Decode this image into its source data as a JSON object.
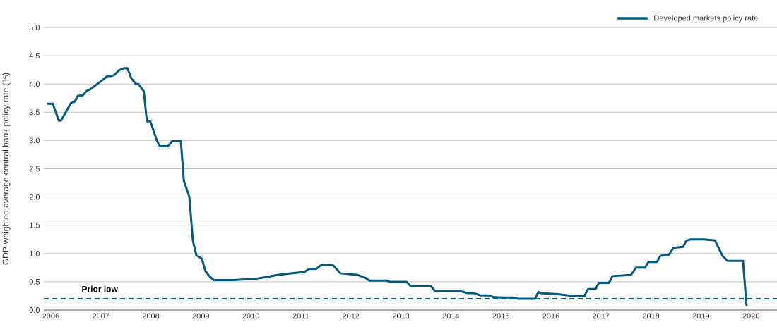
{
  "chart_data": {
    "type": "line",
    "ylabel": "GDP-weighted average central bank policy rate (%)",
    "x": [
      2005.94,
      2006.04,
      2006.16,
      2006.21,
      2006.4,
      2006.48,
      2006.54,
      2006.64,
      2006.72,
      2006.78,
      2006.96,
      2007.13,
      2007.2,
      2007.27,
      2007.36,
      2007.47,
      2007.53,
      2007.61,
      2007.7,
      2007.75,
      2007.86,
      2007.92,
      2007.99,
      2008.12,
      2008.18,
      2008.34,
      2008.43,
      2008.6,
      2008.66,
      2008.77,
      2008.84,
      2008.91,
      2009.02,
      2009.09,
      2009.18,
      2009.26,
      2009.64,
      2009.83,
      2010.07,
      2010.35,
      2010.53,
      2010.92,
      2011.06,
      2011.17,
      2011.31,
      2011.41,
      2011.65,
      2011.79,
      2012.14,
      2012.29,
      2012.37,
      2012.71,
      2012.78,
      2013.11,
      2013.2,
      2013.6,
      2013.68,
      2014.17,
      2014.33,
      2014.45,
      2014.59,
      2014.76,
      2014.84,
      2015.01,
      2015.25,
      2015.34,
      2015.68,
      2015.75,
      2015.79,
      2016.14,
      2016.43,
      2016.67,
      2016.74,
      2016.89,
      2016.96,
      2017.16,
      2017.23,
      2017.6,
      2017.7,
      2017.88,
      2017.95,
      2018.12,
      2018.19,
      2018.36,
      2018.45,
      2018.64,
      2018.71,
      2018.8,
      2019.07,
      2019.28,
      2019.43,
      2019.53,
      2019.84,
      2019.91
    ],
    "series": [
      {
        "name": "Developed markets policy rate",
        "color": "#005a82",
        "values": [
          3.65,
          3.65,
          3.35,
          3.36,
          3.66,
          3.69,
          3.79,
          3.8,
          3.88,
          3.9,
          4.02,
          4.14,
          4.14,
          4.16,
          4.24,
          4.28,
          4.28,
          4.1,
          4.0,
          4.0,
          3.87,
          3.34,
          3.34,
          3.0,
          2.9,
          2.9,
          2.99,
          2.99,
          2.29,
          2.0,
          1.23,
          0.97,
          0.91,
          0.69,
          0.59,
          0.53,
          0.53,
          0.54,
          0.55,
          0.59,
          0.62,
          0.66,
          0.67,
          0.73,
          0.73,
          0.8,
          0.79,
          0.65,
          0.62,
          0.57,
          0.52,
          0.52,
          0.5,
          0.5,
          0.42,
          0.42,
          0.34,
          0.34,
          0.3,
          0.3,
          0.26,
          0.26,
          0.23,
          0.22,
          0.22,
          0.2,
          0.2,
          0.32,
          0.3,
          0.28,
          0.25,
          0.25,
          0.37,
          0.37,
          0.48,
          0.48,
          0.6,
          0.62,
          0.75,
          0.75,
          0.85,
          0.85,
          0.96,
          0.98,
          1.1,
          1.12,
          1.23,
          1.25,
          1.25,
          1.23,
          0.96,
          0.87,
          0.87,
          0.09
        ]
      }
    ],
    "xlim": [
      2005.86,
      2020.52
    ],
    "xticks": [
      2006,
      2007,
      2008,
      2009,
      2010,
      2011,
      2012,
      2013,
      2014,
      2015,
      2016,
      2017,
      2018,
      2019,
      2020
    ],
    "ylim": [
      0,
      5
    ],
    "yticks": [
      {
        "value": 0,
        "label": "0.0"
      },
      0.5,
      {
        "value": 1,
        "label": "1.0"
      },
      1.5,
      {
        "value": 2,
        "label": "2.0"
      },
      2.5,
      {
        "value": 3,
        "label": "3.0"
      },
      3.5,
      {
        "value": 4,
        "label": "4.0"
      },
      4.5,
      {
        "value": 5,
        "label": "5.0"
      }
    ],
    "ref_lines": [
      {
        "axis": "y",
        "value": 0.2,
        "label": "Prior low",
        "color": "#005a82",
        "line_style": "dashed"
      }
    ],
    "grid": "y",
    "legend": "top right",
    "marker": "none",
    "line_style": "solid"
  }
}
